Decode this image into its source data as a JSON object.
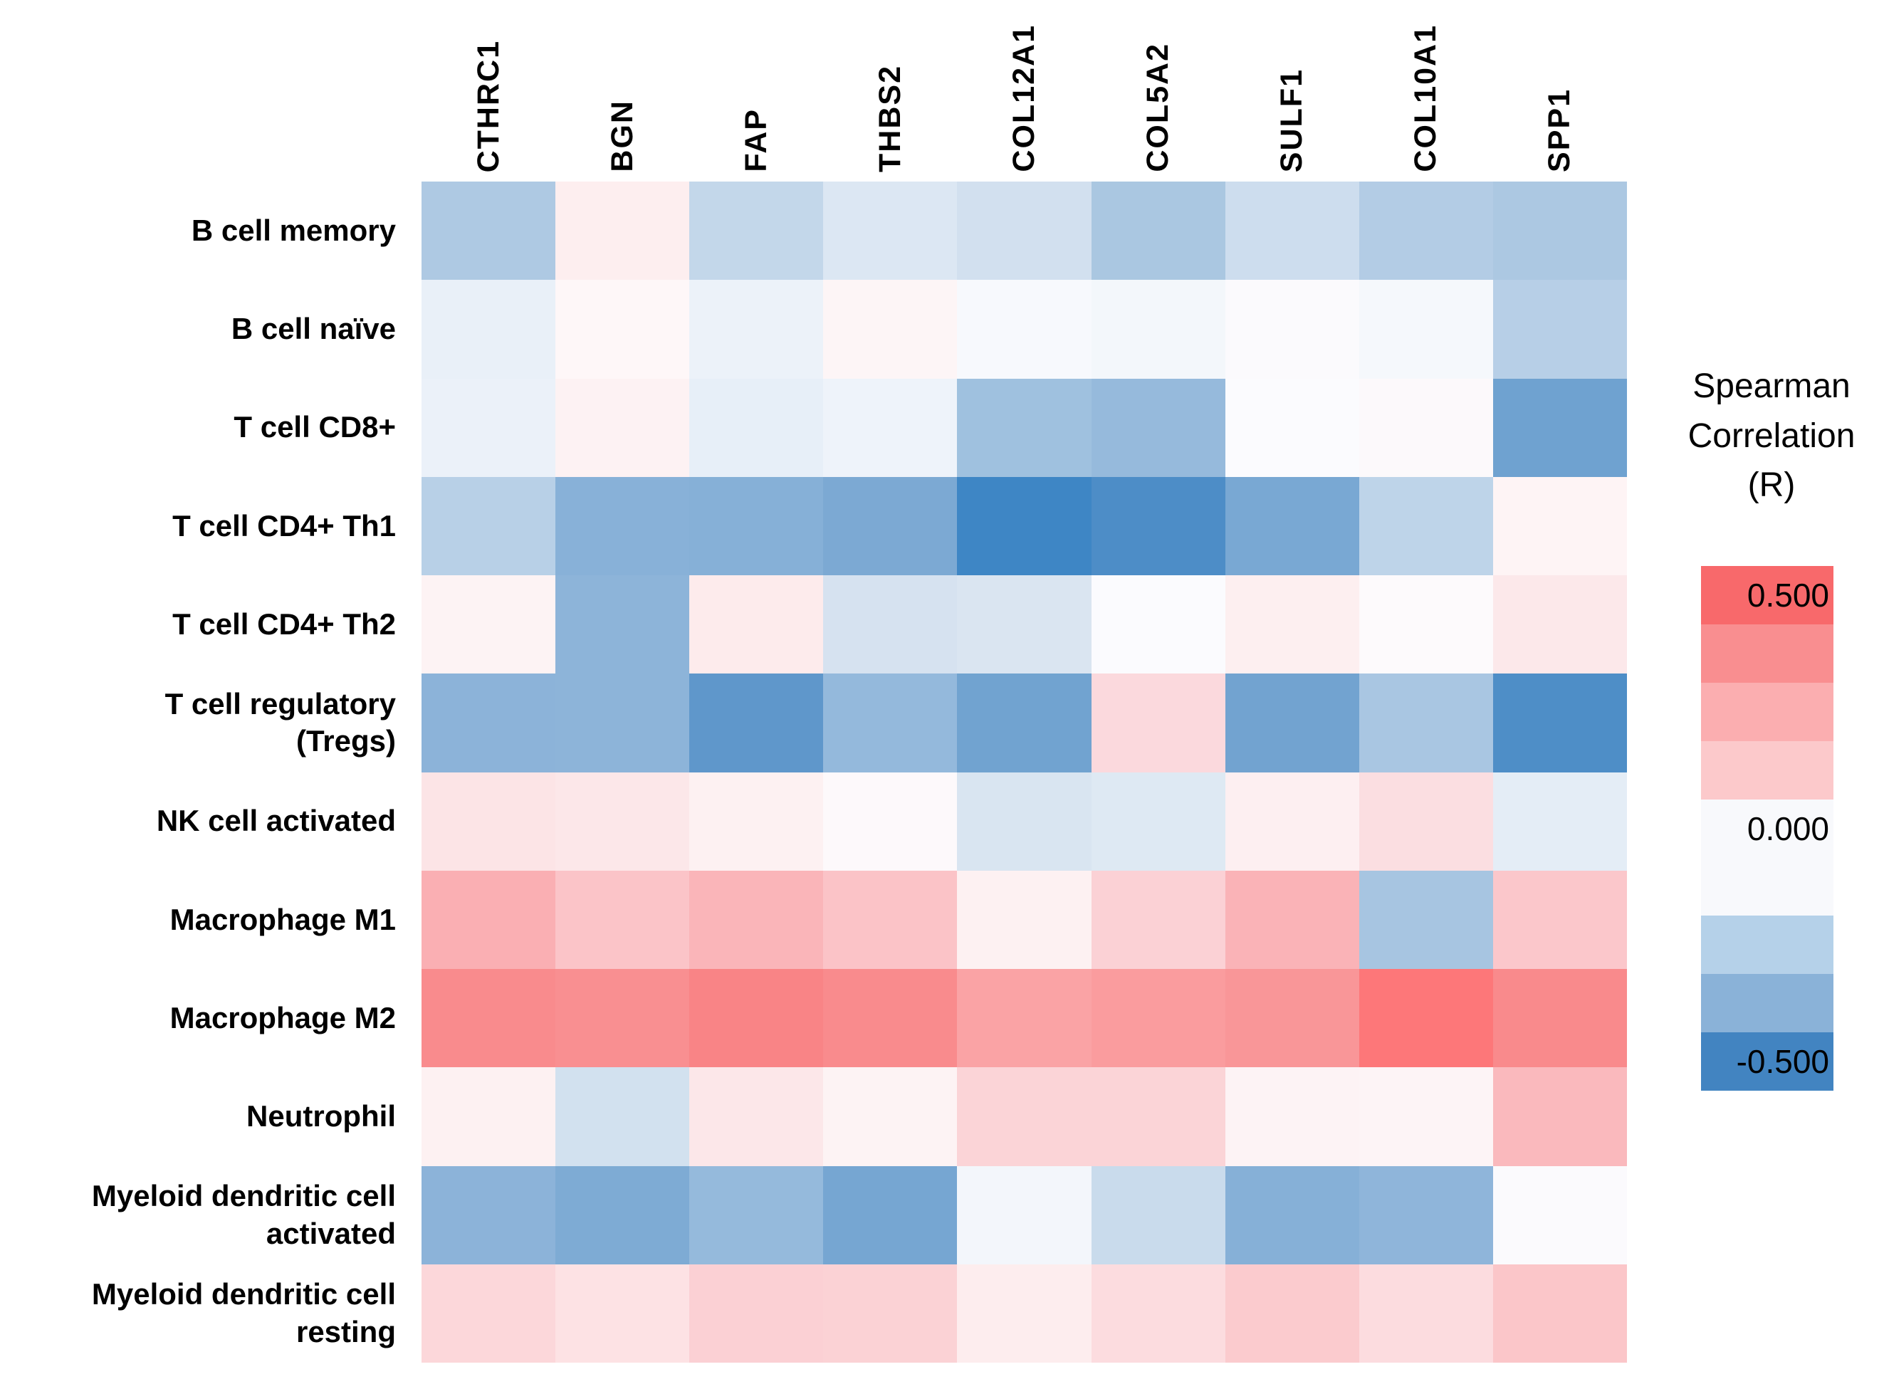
{
  "figure": {
    "background": "#FFFFFF"
  },
  "legend": {
    "title": "Spearman\nCorrelation\n(R)",
    "max_label": "0.500",
    "mid_label": "0.000",
    "min_label": "-0.500",
    "bands": [
      {
        "color": "#F8696B",
        "label": "0.500"
      },
      {
        "color": "#F98E90",
        "label": ""
      },
      {
        "color": "#FBAEB0",
        "label": ""
      },
      {
        "color": "#FCC9CB",
        "label": ""
      },
      {
        "color": "#F8F9FC",
        "label": "0.000"
      },
      {
        "color": "#F8F9FC",
        "label": ""
      },
      {
        "color": "#B5D1E9",
        "label": ""
      },
      {
        "color": "#8AB2D8",
        "label": ""
      },
      {
        "color": "#4284C1",
        "label": "-0.500"
      }
    ]
  },
  "row_labels_display": [
    "B cell memory",
    "B cell naïve",
    "T cell CD8+",
    "T cell CD4+ Th1",
    "T cell CD4+ Th2",
    "T cell regulatory\n(Tregs)",
    "NK cell activated",
    "Macrophage M1",
    "Macrophage M2",
    "Neutrophil",
    "Myeloid dendritic cell\nactivated",
    "Myeloid dendritic cell\nresting"
  ],
  "chart_data": {
    "type": "heatmap",
    "title": "",
    "value_name": "Spearman Correlation (R)",
    "value_range": [
      -0.5,
      0.5
    ],
    "legend_position": "right",
    "grid": false,
    "colorscale": {
      "0.5": "#F8696B",
      "0.0": "#F8F9FC",
      "-0.5": "#4284C1"
    },
    "x_categories": [
      "CTHRC1",
      "BGN",
      "FAP",
      "THBS2",
      "COL12A1",
      "COL5A2",
      "SULF1",
      "COL10A1",
      "SPP1"
    ],
    "y_categories": [
      "B cell memory",
      "B cell naïve",
      "T cell CD8+",
      "T cell CD4+ Th1",
      "T cell CD4+ Th2",
      "T cell regulatory (Tregs)",
      "NK cell activated",
      "Macrophage M1",
      "Macrophage M2",
      "Neutrophil",
      "Myeloid dendritic cell activated",
      "Myeloid dendritic cell resting"
    ],
    "values": [
      [
        -0.22,
        0.04,
        -0.16,
        -0.09,
        -0.12,
        -0.23,
        -0.13,
        -0.2,
        -0.22
      ],
      [
        -0.06,
        0.02,
        -0.05,
        0.03,
        -0.02,
        -0.03,
        0.01,
        -0.03,
        -0.19
      ],
      [
        -0.05,
        0.03,
        -0.06,
        -0.05,
        -0.26,
        -0.28,
        -0.01,
        0.01,
        -0.38
      ],
      [
        -0.19,
        -0.32,
        -0.32,
        -0.35,
        -0.49,
        -0.45,
        -0.36,
        -0.17,
        0.03
      ],
      [
        0.03,
        -0.3,
        0.05,
        -0.11,
        -0.1,
        -0.01,
        0.04,
        0.01,
        0.06
      ],
      [
        -0.31,
        -0.3,
        -0.42,
        -0.28,
        -0.38,
        0.09,
        -0.37,
        -0.23,
        -0.44
      ],
      [
        0.07,
        0.06,
        0.04,
        0.01,
        -0.1,
        -0.09,
        0.04,
        0.08,
        -0.07
      ],
      [
        0.19,
        0.14,
        0.18,
        0.14,
        0.04,
        0.11,
        0.18,
        -0.24,
        0.13
      ],
      [
        0.29,
        0.28,
        0.31,
        0.29,
        0.23,
        0.25,
        0.27,
        0.36,
        0.3
      ],
      [
        0.04,
        -0.12,
        0.06,
        0.03,
        0.11,
        0.11,
        0.03,
        0.03,
        0.17
      ],
      [
        -0.31,
        -0.34,
        -0.28,
        -0.37,
        -0.03,
        -0.14,
        -0.32,
        -0.3,
        0.01
      ],
      [
        0.1,
        0.07,
        0.11,
        0.11,
        0.04,
        0.08,
        0.13,
        0.08,
        0.14
      ]
    ],
    "cell_colors": [
      [
        "#AEC9E3",
        "#FDEEEF",
        "#C3D7EA",
        "#DCE7F3",
        "#D2E0EF",
        "#AAC7E1",
        "#CDDDEE",
        "#B3CCE5",
        "#ACC8E2"
      ],
      [
        "#E9F0F8",
        "#FEF7F8",
        "#ECF2F9",
        "#FDF5F6",
        "#F7F9FD",
        "#F3F7FB",
        "#FBFAFD",
        "#F5F8FC",
        "#B7CFE7"
      ],
      [
        "#EBF1F9",
        "#FDF2F3",
        "#E7EFF8",
        "#EEF3FA",
        "#9FC1DF",
        "#96BADC",
        "#FBFBFE",
        "#FCF9FB",
        "#6FA2D0"
      ],
      [
        "#B8D0E7",
        "#88B1D8",
        "#86B0D7",
        "#7CA9D3",
        "#3E86C5",
        "#4D8DC7",
        "#79A8D3",
        "#BED4E9",
        "#FEF4F5"
      ],
      [
        "#FDF3F4",
        "#8DB4D9",
        "#FDEBEC",
        "#D6E2F0",
        "#DAE5F1",
        "#FBFBFE",
        "#FDEFF0",
        "#FDFAFC",
        "#FCE8EA"
      ],
      [
        "#8CB3D9",
        "#8DB4D9",
        "#5F97CB",
        "#94B9DC",
        "#71A3D0",
        "#FBD9DD",
        "#72A3D0",
        "#A9C6E2",
        "#4E8EC7"
      ],
      [
        "#FCE4E6",
        "#FCE7E9",
        "#FDF1F2",
        "#FDF9FB",
        "#D9E5F1",
        "#DEE9F3",
        "#FDEFF1",
        "#FBDEE1",
        "#E4EDF6"
      ],
      [
        "#FAAFB3",
        "#FBC4C8",
        "#FAB5B9",
        "#FBC3C7",
        "#FDF1F2",
        "#FBD1D5",
        "#FAB3B7",
        "#A7C5E1",
        "#FBC7CB"
      ],
      [
        "#F98B8D",
        "#F98F91",
        "#F98486",
        "#F98B8D",
        "#FAA3A5",
        "#FA9C9E",
        "#F99698",
        "#FD7779",
        "#F98A8C"
      ],
      [
        "#FDF1F2",
        "#D2E1EF",
        "#FCE7E9",
        "#FDF3F4",
        "#FBD4D7",
        "#FBD4D7",
        "#FDF3F5",
        "#FDF4F6",
        "#FAB9BD"
      ],
      [
        "#8CB3D9",
        "#7EABD4",
        "#95BADC",
        "#76A6D2",
        "#F3F6FB",
        "#C9DBEC",
        "#86B0D7",
        "#8FB5DA",
        "#FBFAFD"
      ],
      [
        "#FCD7DA",
        "#FDE2E4",
        "#FBD0D4",
        "#FBD2D5",
        "#FDEDEE",
        "#FCDCDF",
        "#FBCBCE",
        "#FCDCDF",
        "#FBC6C9"
      ]
    ]
  }
}
